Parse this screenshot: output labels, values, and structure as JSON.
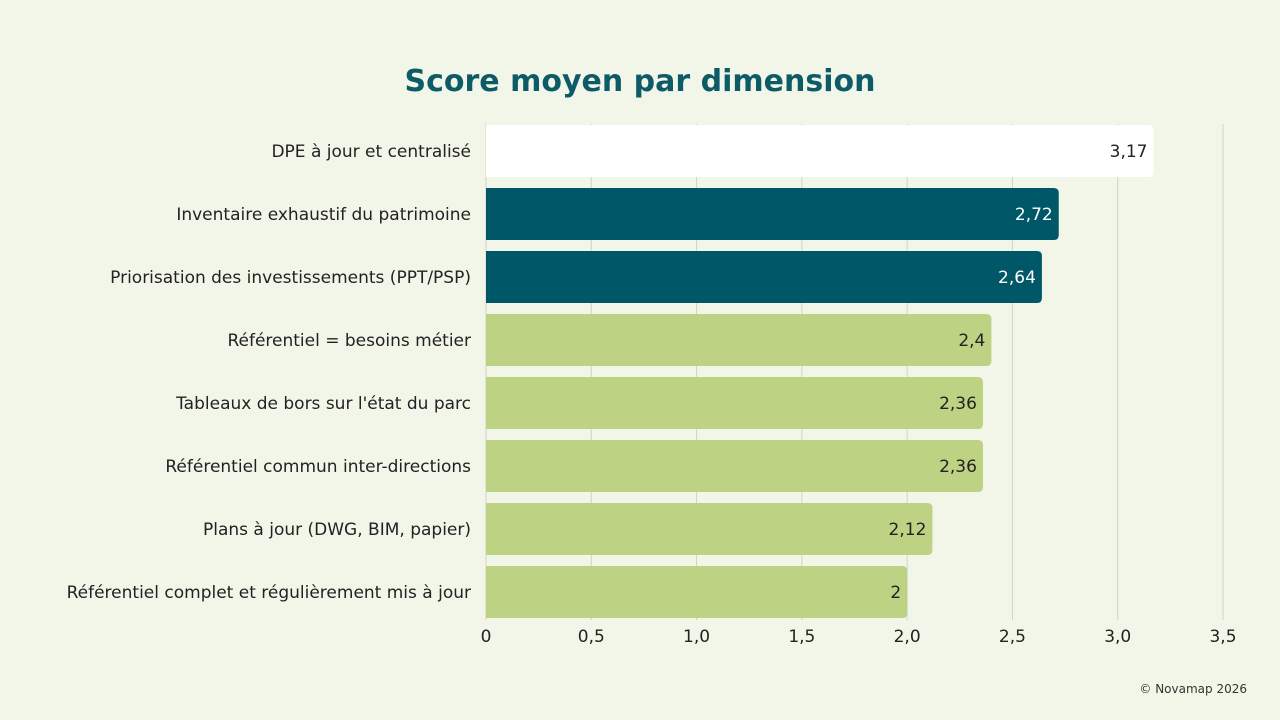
{
  "footer": "© Novamap 2026",
  "colors": {
    "background": "#f2f6e9",
    "title": "#0e5b68",
    "highlight": "#ffffff",
    "dark": "#005767",
    "light": "#bdd283",
    "grid": "#cfd4c4"
  },
  "chart_data": {
    "type": "bar",
    "orientation": "horizontal",
    "title": "Score moyen par dimension",
    "xlabel": "",
    "ylabel": "",
    "xlim": [
      0,
      3.5
    ],
    "xticks": [
      "0",
      "0,5",
      "1,0",
      "1,5",
      "2,0",
      "2,5",
      "3,0",
      "3,5"
    ],
    "grid": true,
    "categories": [
      "DPE à jour et centralisé",
      "Inventaire exhaustif du patrimoine",
      "Priorisation des investissements (PPT/PSP)",
      "Référentiel = besoins métier",
      "Tableaux de bors sur l'état du parc",
      "Référentiel commun inter-directions",
      "Plans à jour (DWG, BIM, papier)",
      "Référentiel complet et régulièrement mis à jour"
    ],
    "values": [
      3.17,
      2.72,
      2.64,
      2.4,
      2.36,
      2.36,
      2.12,
      2
    ],
    "value_labels": [
      "3,17",
      "2,72",
      "2,64",
      "2,4",
      "2,36",
      "2,36",
      "2,12",
      "2"
    ],
    "bar_colors": [
      "#ffffff",
      "#005767",
      "#005767",
      "#bdd283",
      "#bdd283",
      "#bdd283",
      "#bdd283",
      "#bdd283"
    ],
    "label_colors": [
      "#222222",
      "#ffffff",
      "#ffffff",
      "#222222",
      "#222222",
      "#222222",
      "#222222",
      "#222222"
    ]
  }
}
